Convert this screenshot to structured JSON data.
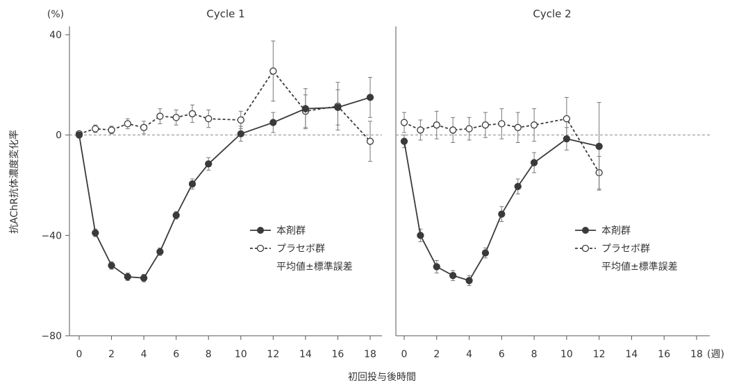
{
  "chart_data": {
    "type": "line",
    "y_unit": "(%)",
    "ylabel": "抗AChR抗体濃度変化率",
    "xlabel": "初回投与後時間",
    "x_unit": "(週)",
    "ylim": [
      -80,
      40
    ],
    "yticks": [
      40,
      0,
      -40,
      -80
    ],
    "ytick_labels": [
      "40",
      "0",
      "−40",
      "−80"
    ],
    "xlim": [
      0,
      18
    ],
    "xticks": [
      0,
      2,
      4,
      6,
      8,
      10,
      12,
      14,
      16,
      18
    ],
    "reference_line_y": 0,
    "colors": {
      "drug": "#3a3a3a",
      "placebo": "#3a3a3a",
      "axis": "#555555",
      "reference": "#888888"
    },
    "legend": {
      "drug": "本剤群",
      "placebo": "プラセボ群",
      "note": "平均値±標準誤差"
    },
    "panels": [
      {
        "title": "Cycle 1",
        "series": [
          {
            "key": "drug",
            "style": "solid-filled",
            "x": [
              0,
              1,
              2,
              3,
              4,
              5,
              6,
              7,
              8,
              10,
              12,
              14,
              16,
              18
            ],
            "y": [
              0,
              -39,
              -52,
              -56.5,
              -57,
              -46.5,
              -32,
              -19.5,
              -11.5,
              0.5,
              5,
              10.5,
              11,
              15
            ],
            "err": [
              0,
              1.5,
              1.5,
              1.5,
              1.5,
              1.5,
              1.5,
              2,
              2.5,
              3,
              4,
              8,
              7,
              8
            ]
          },
          {
            "key": "placebo",
            "style": "dashed-open",
            "x": [
              0,
              1,
              2,
              3,
              4,
              5,
              6,
              7,
              8,
              10,
              12,
              14,
              16,
              18
            ],
            "y": [
              0.5,
              2.5,
              2,
              4.5,
              3,
              7.5,
              7,
              8.5,
              6.5,
              6,
              25.5,
              9.5,
              11.5,
              -2.5
            ],
            "err": [
              0,
              1.5,
              1.5,
              2,
              2.5,
              3,
              3,
              3.5,
              3.5,
              3.5,
              12,
              6.5,
              9.5,
              8
            ]
          }
        ]
      },
      {
        "title": "Cycle 2",
        "series": [
          {
            "key": "drug",
            "style": "solid-filled",
            "x": [
              0,
              1,
              2,
              3,
              4,
              5,
              6,
              7,
              8,
              10,
              12
            ],
            "y": [
              -2.5,
              -40,
              -52.5,
              -56,
              -58,
              -47,
              -31.5,
              -20.5,
              -11,
              -1.5,
              -4.5
            ],
            "err": [
              2.5,
              2.5,
              2.5,
              2,
              2,
              2,
              3,
              3,
              4,
              4.5,
              17.5
            ]
          },
          {
            "key": "placebo",
            "style": "dashed-open",
            "x": [
              0,
              1,
              2,
              3,
              4,
              5,
              6,
              7,
              8,
              10,
              12
            ],
            "y": [
              5,
              2,
              4,
              2,
              2.5,
              4,
              4.5,
              3,
              4,
              6.5,
              -15
            ],
            "err": [
              4,
              4,
              5.5,
              5,
              4.5,
              5,
              6,
              6,
              6.5,
              8.5,
              6.5
            ]
          }
        ]
      }
    ]
  }
}
